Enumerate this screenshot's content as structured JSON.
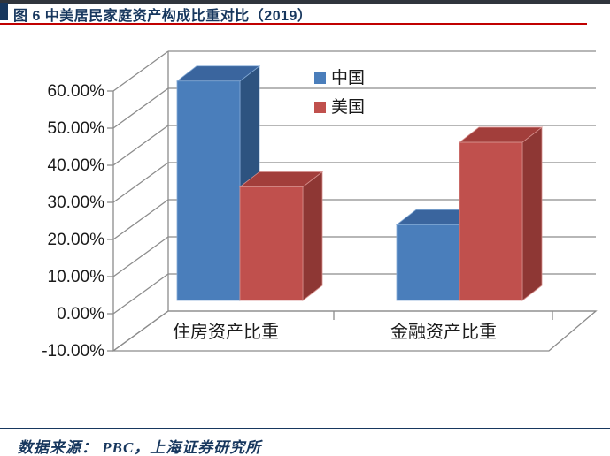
{
  "header": {
    "title": "图 6 中美居民家庭资产构成比重对比（2019）"
  },
  "footer": {
    "source": "数据来源： PBC，上海证券研究所"
  },
  "colors": {
    "navy": "#17375E",
    "divider_red": "#C00000",
    "top_bar": "#30353D",
    "grid": "#8C8C8C",
    "text": "#1A1A1A",
    "series": [
      {
        "front": "#4A7EBB",
        "top": "#3A659E",
        "side": "#2D5380",
        "edge": "#85ABD6"
      },
      {
        "front": "#C0504D",
        "top": "#A23E3B",
        "side": "#8E3734",
        "edge": "#D68F8C"
      }
    ]
  },
  "chart_data": {
    "type": "bar",
    "variant": "3d-clustered-column",
    "title": "",
    "xlabel": "",
    "ylabel": "",
    "categories": [
      "住房资产比重",
      "金融资产比重"
    ],
    "series": [
      {
        "name": "中国",
        "values": [
          59.1,
          20.4
        ]
      },
      {
        "name": "美国",
        "values": [
          30.6,
          42.6
        ]
      }
    ],
    "ylim": [
      -10,
      60
    ],
    "ytick_step": 10,
    "yticks": [
      "60.00%",
      "50.00%",
      "40.00%",
      "30.00%",
      "20.00%",
      "10.00%",
      "0.00%",
      "-10.00%"
    ],
    "grid": true,
    "legend_position": "inside-top-center"
  }
}
